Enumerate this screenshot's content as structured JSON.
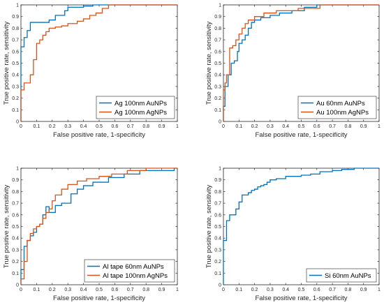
{
  "chart_data": [
    {
      "type": "line",
      "title": "",
      "xlabel": "False positive rate, 1-specificity",
      "ylabel": "True positive rate, sensitivity",
      "xlim": [
        0,
        1
      ],
      "ylim": [
        0,
        1
      ],
      "xticks": [
        "0",
        "0.1",
        "0.2",
        "0.3",
        "0.4",
        "0.5",
        "0.6",
        "0.7",
        "0.8",
        "0.9",
        "1"
      ],
      "yticks": [
        "0",
        "0.1",
        "0.2",
        "0.3",
        "0.4",
        "0.5",
        "0.6",
        "0.7",
        "0.8",
        "0.9",
        "1"
      ],
      "grid": false,
      "legend": "bottom-right",
      "series": [
        {
          "name": "Ag 100nm AuNPs",
          "color": "#0072BD",
          "x": [
            0,
            0,
            0.02,
            0.02,
            0.04,
            0.04,
            0.06,
            0.06,
            0.18,
            0.18,
            0.22,
            0.22,
            0.28,
            0.28,
            0.3,
            0.3,
            0.4,
            0.4,
            0.46,
            0.46,
            1
          ],
          "y": [
            0,
            0.64,
            0.64,
            0.72,
            0.72,
            0.78,
            0.78,
            0.85,
            0.85,
            0.87,
            0.87,
            0.91,
            0.91,
            0.95,
            0.95,
            0.98,
            0.98,
            0.99,
            0.99,
            1,
            1
          ]
        },
        {
          "name": "Ag 100nm AgNPs",
          "color": "#D95319",
          "x": [
            0,
            0,
            0.02,
            0.02,
            0.06,
            0.06,
            0.08,
            0.08,
            0.1,
            0.1,
            0.12,
            0.12,
            0.14,
            0.14,
            0.16,
            0.16,
            0.18,
            0.18,
            0.22,
            0.22,
            0.26,
            0.26,
            0.3,
            0.3,
            0.36,
            0.36,
            0.4,
            0.4,
            0.44,
            0.44,
            0.48,
            0.48,
            0.52,
            0.52,
            0.56,
            0.56,
            1
          ],
          "y": [
            0,
            0.27,
            0.27,
            0.33,
            0.33,
            0.4,
            0.4,
            0.53,
            0.53,
            0.67,
            0.67,
            0.7,
            0.7,
            0.74,
            0.74,
            0.77,
            0.77,
            0.8,
            0.8,
            0.81,
            0.81,
            0.82,
            0.82,
            0.84,
            0.84,
            0.86,
            0.86,
            0.88,
            0.88,
            0.91,
            0.91,
            0.93,
            0.93,
            0.97,
            0.97,
            1,
            1
          ]
        }
      ]
    },
    {
      "type": "line",
      "title": "",
      "xlabel": "False positive rate, 1-specificity",
      "ylabel": "True positive rate, sensitivity",
      "xlim": [
        0,
        1
      ],
      "ylim": [
        0,
        1
      ],
      "xticks": [
        "0",
        "0.1",
        "0.2",
        "0.3",
        "0.4",
        "0.5",
        "0.6",
        "0.7",
        "0.8",
        "0.9",
        "1"
      ],
      "yticks": [
        "0",
        "0.1",
        "0.2",
        "0.3",
        "0.4",
        "0.5",
        "0.6",
        "0.7",
        "0.8",
        "0.9",
        "1"
      ],
      "grid": false,
      "legend": "bottom-right",
      "series": [
        {
          "name": "Au 60nm AuNPs",
          "color": "#0072BD",
          "x": [
            0,
            0,
            0.01,
            0.01,
            0.03,
            0.03,
            0.05,
            0.05,
            0.07,
            0.07,
            0.09,
            0.09,
            0.1,
            0.1,
            0.12,
            0.12,
            0.14,
            0.14,
            0.16,
            0.16,
            0.18,
            0.18,
            0.2,
            0.2,
            0.24,
            0.24,
            0.3,
            0.3,
            0.36,
            0.36,
            0.44,
            0.44,
            0.52,
            0.52,
            0.6,
            0.6,
            1
          ],
          "y": [
            0,
            0.13,
            0.13,
            0.3,
            0.3,
            0.4,
            0.4,
            0.5,
            0.5,
            0.52,
            0.52,
            0.6,
            0.6,
            0.67,
            0.67,
            0.7,
            0.7,
            0.74,
            0.74,
            0.8,
            0.8,
            0.85,
            0.85,
            0.87,
            0.87,
            0.89,
            0.89,
            0.91,
            0.91,
            0.93,
            0.93,
            0.95,
            0.95,
            0.98,
            0.98,
            1,
            1
          ]
        },
        {
          "name": "Au 100nm AgNPs",
          "color": "#D95319",
          "x": [
            0,
            0,
            0.01,
            0.01,
            0.02,
            0.02,
            0.04,
            0.04,
            0.06,
            0.06,
            0.08,
            0.08,
            0.1,
            0.1,
            0.12,
            0.12,
            0.14,
            0.14,
            0.16,
            0.16,
            0.2,
            0.2,
            0.26,
            0.26,
            0.34,
            0.34,
            0.48,
            0.48,
            0.62,
            0.62,
            1
          ],
          "y": [
            0,
            0.27,
            0.27,
            0.33,
            0.33,
            0.4,
            0.4,
            0.63,
            0.63,
            0.65,
            0.65,
            0.7,
            0.7,
            0.75,
            0.75,
            0.8,
            0.8,
            0.84,
            0.84,
            0.87,
            0.87,
            0.9,
            0.9,
            0.93,
            0.93,
            0.95,
            0.95,
            0.97,
            0.97,
            1,
            1
          ]
        }
      ]
    },
    {
      "type": "line",
      "title": "",
      "xlabel": "False positive rate, 1-specificity",
      "ylabel": "True positive rate, sensitivity",
      "xlim": [
        0,
        1
      ],
      "ylim": [
        0,
        1
      ],
      "xticks": [
        "0",
        "0.1",
        "0.2",
        "0.3",
        "0.4",
        "0.5",
        "0.6",
        "0.7",
        "0.8",
        "0.9",
        "1"
      ],
      "yticks": [
        "0",
        "0.1",
        "0.2",
        "0.3",
        "0.4",
        "0.5",
        "0.6",
        "0.7",
        "0.8",
        "0.9",
        "1"
      ],
      "grid": false,
      "legend": "bottom-right",
      "series": [
        {
          "name": "Al tape 60nm AuNPs",
          "color": "#0072BD",
          "x": [
            0,
            0,
            0.02,
            0.02,
            0.04,
            0.04,
            0.06,
            0.06,
            0.08,
            0.08,
            0.1,
            0.1,
            0.12,
            0.12,
            0.14,
            0.14,
            0.16,
            0.16,
            0.18,
            0.18,
            0.22,
            0.22,
            0.26,
            0.26,
            0.32,
            0.32,
            0.36,
            0.36,
            0.4,
            0.4,
            0.46,
            0.46,
            0.56,
            0.56,
            0.66,
            0.66,
            0.76,
            0.76,
            0.98,
            0.98,
            1
          ],
          "y": [
            0,
            0.13,
            0.13,
            0.33,
            0.33,
            0.38,
            0.38,
            0.42,
            0.42,
            0.45,
            0.45,
            0.5,
            0.5,
            0.52,
            0.52,
            0.6,
            0.6,
            0.67,
            0.67,
            0.62,
            0.62,
            0.68,
            0.68,
            0.7,
            0.7,
            0.78,
            0.78,
            0.82,
            0.82,
            0.85,
            0.85,
            0.88,
            0.88,
            0.92,
            0.92,
            0.95,
            0.95,
            0.98,
            0.98,
            1,
            1
          ]
        },
        {
          "name": "Al tape 100nm AgNPs",
          "color": "#D95319",
          "x": [
            0,
            0,
            0.02,
            0.02,
            0.04,
            0.04,
            0.06,
            0.06,
            0.08,
            0.08,
            0.1,
            0.1,
            0.12,
            0.12,
            0.14,
            0.14,
            0.16,
            0.16,
            0.18,
            0.18,
            0.2,
            0.2,
            0.22,
            0.22,
            0.26,
            0.26,
            0.3,
            0.3,
            0.36,
            0.36,
            0.42,
            0.42,
            0.5,
            0.5,
            0.58,
            0.58,
            0.68,
            0.68,
            0.8,
            0.8,
            1
          ],
          "y": [
            0,
            0.05,
            0.05,
            0.2,
            0.2,
            0.38,
            0.38,
            0.44,
            0.44,
            0.48,
            0.48,
            0.5,
            0.5,
            0.52,
            0.52,
            0.57,
            0.57,
            0.62,
            0.62,
            0.65,
            0.65,
            0.72,
            0.72,
            0.77,
            0.77,
            0.82,
            0.82,
            0.86,
            0.86,
            0.89,
            0.89,
            0.91,
            0.91,
            0.93,
            0.93,
            0.95,
            0.95,
            0.98,
            0.98,
            1,
            1
          ]
        }
      ]
    },
    {
      "type": "line",
      "title": "",
      "xlabel": "False positive rate, 1-specificity",
      "ylabel": "True positive rate, sensitivity",
      "xlim": [
        0,
        1
      ],
      "ylim": [
        0,
        1
      ],
      "xticks": [
        "0",
        "0.1",
        "0.2",
        "0.3",
        "0.4",
        "0.5",
        "0.6",
        "0.7",
        "0.8",
        "0.9",
        "1"
      ],
      "yticks": [
        "0",
        "0.1",
        "0.2",
        "0.3",
        "0.4",
        "0.5",
        "0.6",
        "0.7",
        "0.8",
        "0.9",
        "1"
      ],
      "grid": false,
      "legend": "bottom-right",
      "series": [
        {
          "name": "Si 60nm AuNPs",
          "color": "#0072BD",
          "x": [
            0,
            0,
            0.02,
            0.02,
            0.04,
            0.04,
            0.08,
            0.08,
            0.1,
            0.1,
            0.12,
            0.12,
            0.16,
            0.16,
            0.18,
            0.18,
            0.2,
            0.2,
            0.22,
            0.22,
            0.24,
            0.24,
            0.26,
            0.26,
            0.28,
            0.28,
            0.3,
            0.3,
            0.34,
            0.34,
            0.4,
            0.4,
            0.5,
            0.5,
            0.56,
            0.56,
            0.62,
            0.62,
            0.7,
            0.7,
            0.76,
            0.76,
            0.84,
            0.84,
            0.9,
            0.9,
            1
          ],
          "y": [
            0,
            0.38,
            0.38,
            0.55,
            0.55,
            0.6,
            0.6,
            0.65,
            0.65,
            0.71,
            0.71,
            0.77,
            0.77,
            0.79,
            0.79,
            0.81,
            0.81,
            0.82,
            0.82,
            0.84,
            0.84,
            0.85,
            0.85,
            0.86,
            0.86,
            0.88,
            0.88,
            0.9,
            0.9,
            0.91,
            0.91,
            0.93,
            0.93,
            0.94,
            0.94,
            0.95,
            0.95,
            0.97,
            0.97,
            0.98,
            0.98,
            0.99,
            0.99,
            1,
            1,
            1,
            1
          ]
        }
      ]
    }
  ]
}
